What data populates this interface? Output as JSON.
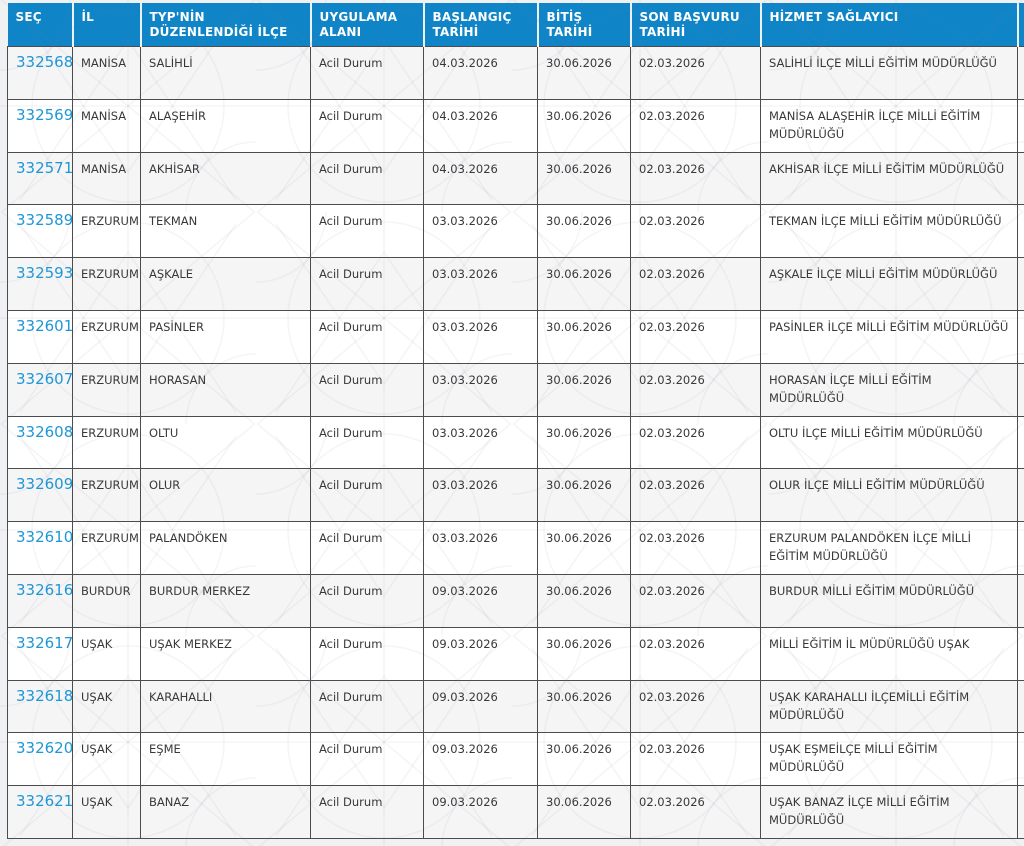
{
  "table": {
    "columns": [
      {
        "key": "sec",
        "label": "SEÇ"
      },
      {
        "key": "il",
        "label": "İL"
      },
      {
        "key": "ilce",
        "label": "TYP'NİN DÜZENLENDİĞİ İLÇE"
      },
      {
        "key": "alan",
        "label": "UYGULAMA ALANI"
      },
      {
        "key": "baslangic",
        "label": "BAŞLANGIÇ TARİHİ"
      },
      {
        "key": "bitis",
        "label": "BİTİŞ TARİHİ"
      },
      {
        "key": "son",
        "label": "SON BAŞVURU TARİHİ"
      },
      {
        "key": "saglayici",
        "label": "HİZMET SAĞLAYICI"
      },
      {
        "key": "clipped",
        "label": ""
      }
    ],
    "rows": [
      {
        "sec": "332568",
        "il": "MANİSA",
        "ilce": "SALİHLİ",
        "alan": "Acil Durum",
        "baslangic": "04.03.2026",
        "bitis": "30.06.2026",
        "son": "02.03.2026",
        "saglayici": "SALİHLİ İLÇE MİLLİ EĞİTİM MÜDÜRLÜĞÜ"
      },
      {
        "sec": "332569",
        "il": "MANİSA",
        "ilce": "ALAŞEHİR",
        "alan": "Acil Durum",
        "baslangic": "04.03.2026",
        "bitis": "30.06.2026",
        "son": "02.03.2026",
        "saglayici": "MANİSA ALAŞEHİR İLÇE MİLLİ EĞİTİM MÜDÜRLÜĞÜ"
      },
      {
        "sec": "332571",
        "il": "MANİSA",
        "ilce": "AKHİSAR",
        "alan": "Acil Durum",
        "baslangic": "04.03.2026",
        "bitis": "30.06.2026",
        "son": "02.03.2026",
        "saglayici": "AKHİSAR İLÇE MİLLİ EĞİTİM MÜDÜRLÜĞÜ"
      },
      {
        "sec": "332589",
        "il": "ERZURUM",
        "ilce": "TEKMAN",
        "alan": "Acil Durum",
        "baslangic": "03.03.2026",
        "bitis": "30.06.2026",
        "son": "02.03.2026",
        "saglayici": "TEKMAN İLÇE MİLLİ EĞİTİM MÜDÜRLÜĞÜ"
      },
      {
        "sec": "332593",
        "il": "ERZURUM",
        "ilce": "AŞKALE",
        "alan": "Acil Durum",
        "baslangic": "03.03.2026",
        "bitis": "30.06.2026",
        "son": "02.03.2026",
        "saglayici": "AŞKALE İLÇE MİLLİ EĞİTİM MÜDÜRLÜĞÜ"
      },
      {
        "sec": "332601",
        "il": "ERZURUM",
        "ilce": "PASİNLER",
        "alan": "Acil Durum",
        "baslangic": "03.03.2026",
        "bitis": "30.06.2026",
        "son": "02.03.2026",
        "saglayici": "PASİNLER İLÇE MİLLİ EĞİTİM MÜDÜRLÜĞÜ"
      },
      {
        "sec": "332607",
        "il": "ERZURUM",
        "ilce": "HORASAN",
        "alan": "Acil Durum",
        "baslangic": "03.03.2026",
        "bitis": "30.06.2026",
        "son": "02.03.2026",
        "saglayici": "HORASAN İLÇE MİLLİ EĞİTİM MÜDÜRLÜĞÜ"
      },
      {
        "sec": "332608",
        "il": "ERZURUM",
        "ilce": "OLTU",
        "alan": "Acil Durum",
        "baslangic": "03.03.2026",
        "bitis": "30.06.2026",
        "son": "02.03.2026",
        "saglayici": "OLTU İLÇE MİLLİ EĞİTİM MÜDÜRLÜĞÜ"
      },
      {
        "sec": "332609",
        "il": "ERZURUM",
        "ilce": "OLUR",
        "alan": "Acil Durum",
        "baslangic": "03.03.2026",
        "bitis": "30.06.2026",
        "son": "02.03.2026",
        "saglayici": "OLUR İLÇE MİLLİ EĞİTİM MÜDÜRLÜĞÜ"
      },
      {
        "sec": "332610",
        "il": "ERZURUM",
        "ilce": "PALANDÖKEN",
        "alan": "Acil Durum",
        "baslangic": "03.03.2026",
        "bitis": "30.06.2026",
        "son": "02.03.2026",
        "saglayici": "ERZURUM PALANDÖKEN İLÇE MİLLİ EĞİTİM MÜDÜRLÜĞÜ"
      },
      {
        "sec": "332616",
        "il": "BURDUR",
        "ilce": "BURDUR MERKEZ",
        "alan": "Acil Durum",
        "baslangic": "09.03.2026",
        "bitis": "30.06.2026",
        "son": "02.03.2026",
        "saglayici": "BURDUR MİLLİ EĞİTİM MÜDÜRLÜĞÜ"
      },
      {
        "sec": "332617",
        "il": "UŞAK",
        "ilce": "UŞAK MERKEZ",
        "alan": "Acil Durum",
        "baslangic": "09.03.2026",
        "bitis": "30.06.2026",
        "son": "02.03.2026",
        "saglayici": "MİLLİ EĞİTİM İL MÜDÜRLÜĞÜ UŞAK"
      },
      {
        "sec": "332618",
        "il": "UŞAK",
        "ilce": "KARAHALLI",
        "alan": "Acil Durum",
        "baslangic": "09.03.2026",
        "bitis": "30.06.2026",
        "son": "02.03.2026",
        "saglayici": "UŞAK KARAHALLI İLÇEMİLLİ EĞİTİM MÜDÜRLÜĞÜ"
      },
      {
        "sec": "332620",
        "il": "UŞAK",
        "ilce": "EŞME",
        "alan": "Acil Durum",
        "baslangic": "09.03.2026",
        "bitis": "30.06.2026",
        "son": "02.03.2026",
        "saglayici": "UŞAK EŞMEİLÇE MİLLİ EĞİTİM MÜDÜRLÜĞÜ"
      },
      {
        "sec": "332621",
        "il": "UŞAK",
        "ilce": "BANAZ",
        "alan": "Acil Durum",
        "baslangic": "09.03.2026",
        "bitis": "30.06.2026",
        "son": "02.03.2026",
        "saglayici": "UŞAK BANAZ İLÇE MİLLİ EĞİTİM MÜDÜRLÜĞÜ"
      }
    ]
  },
  "colors": {
    "header_bg": "#0f85c8",
    "link": "#1e97d6",
    "body_text": "#383838",
    "border": "#4c4c4c",
    "row_alt": "#f5f5f6",
    "page_bg": "#f0f1f3"
  }
}
